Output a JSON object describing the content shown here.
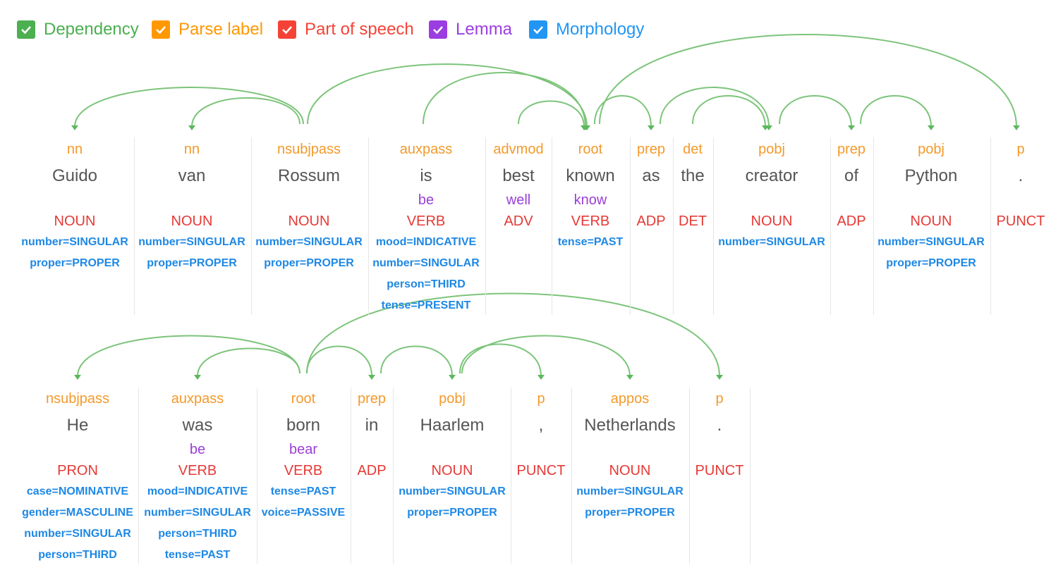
{
  "toggles": [
    {
      "label": "Dependency"
    },
    {
      "label": "Parse label"
    },
    {
      "label": "Part of speech"
    },
    {
      "label": "Lemma"
    },
    {
      "label": "Morphology"
    }
  ],
  "sentences": [
    {
      "tokens": [
        {
          "label": "nn",
          "word": "Guido",
          "pos": "NOUN",
          "morphology": [
            "number=SINGULAR",
            "proper=PROPER"
          ]
        },
        {
          "label": "nn",
          "word": "van",
          "pos": "NOUN",
          "morphology": [
            "number=SINGULAR",
            "proper=PROPER"
          ]
        },
        {
          "label": "nsubjpass",
          "word": "Rossum",
          "pos": "NOUN",
          "morphology": [
            "number=SINGULAR",
            "proper=PROPER"
          ]
        },
        {
          "label": "auxpass",
          "word": "is",
          "lemma": "be",
          "pos": "VERB",
          "morphology": [
            "mood=INDICATIVE",
            "number=SINGULAR",
            "person=THIRD",
            "tense=PRESENT"
          ]
        },
        {
          "label": "advmod",
          "word": "best",
          "lemma": "well",
          "pos": "ADV",
          "morphology": []
        },
        {
          "label": "root",
          "word": "known",
          "lemma": "know",
          "pos": "VERB",
          "morphology": [
            "tense=PAST"
          ]
        },
        {
          "label": "prep",
          "word": "as",
          "pos": "ADP",
          "morphology": []
        },
        {
          "label": "det",
          "word": "the",
          "pos": "DET",
          "morphology": []
        },
        {
          "label": "pobj",
          "word": "creator",
          "pos": "NOUN",
          "morphology": [
            "number=SINGULAR"
          ]
        },
        {
          "label": "prep",
          "word": "of",
          "pos": "ADP",
          "morphology": []
        },
        {
          "label": "pobj",
          "word": "Python",
          "pos": "NOUN",
          "morphology": [
            "number=SINGULAR",
            "proper=PROPER"
          ]
        },
        {
          "label": "p",
          "word": ".",
          "pos": "PUNCT",
          "morphology": []
        }
      ]
    },
    {
      "tokens": [
        {
          "label": "nsubjpass",
          "word": "He",
          "pos": "PRON",
          "morphology": [
            "case=NOMINATIVE",
            "gender=MASCULINE",
            "number=SINGULAR",
            "person=THIRD"
          ]
        },
        {
          "label": "auxpass",
          "word": "was",
          "lemma": "be",
          "pos": "VERB",
          "morphology": [
            "mood=INDICATIVE",
            "number=SINGULAR",
            "person=THIRD",
            "tense=PAST"
          ]
        },
        {
          "label": "root",
          "word": "born",
          "lemma": "bear",
          "pos": "VERB",
          "morphology": [
            "tense=PAST",
            "voice=PASSIVE"
          ]
        },
        {
          "label": "prep",
          "word": "in",
          "pos": "ADP",
          "morphology": []
        },
        {
          "label": "pobj",
          "word": "Haarlem",
          "pos": "NOUN",
          "morphology": [
            "number=SINGULAR",
            "proper=PROPER"
          ]
        },
        {
          "label": "p",
          "word": ",",
          "pos": "PUNCT",
          "morphology": []
        },
        {
          "label": "appos",
          "word": "Netherlands",
          "pos": "NOUN",
          "morphology": [
            "number=SINGULAR",
            "proper=PROPER"
          ]
        },
        {
          "label": "p",
          "word": ".",
          "pos": "PUNCT",
          "morphology": []
        }
      ]
    }
  ]
}
